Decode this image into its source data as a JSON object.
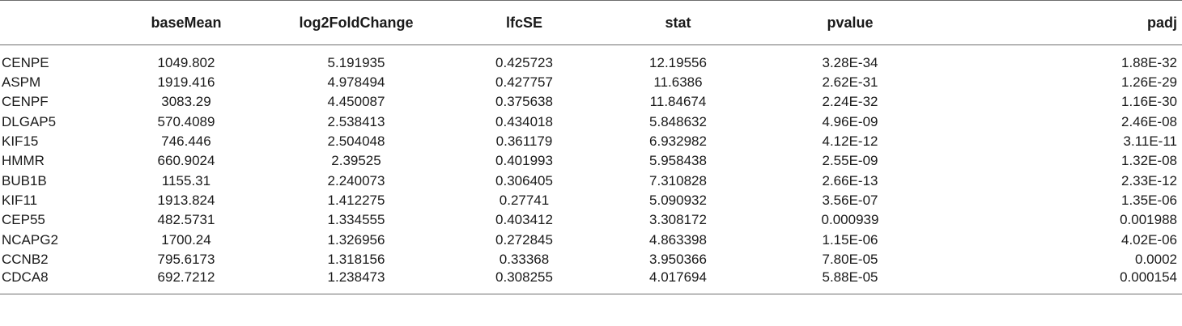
{
  "table": {
    "headers": [
      "",
      "baseMean",
      "log2FoldChange",
      "lfcSE",
      "stat",
      "pvalue",
      "padj"
    ],
    "rows": [
      [
        "CENPE",
        "1049.802",
        "5.191935",
        "0.425723",
        "12.19556",
        "3.28E-34",
        "1.88E-32"
      ],
      [
        "ASPM",
        "1919.416",
        "4.978494",
        "0.427757",
        "11.6386",
        "2.62E-31",
        "1.26E-29"
      ],
      [
        "CENPF",
        "3083.29",
        "4.450087",
        "0.375638",
        "11.84674",
        "2.24E-32",
        "1.16E-30"
      ],
      [
        "DLGAP5",
        "570.4089",
        "2.538413",
        "0.434018",
        "5.848632",
        "4.96E-09",
        "2.46E-08"
      ],
      [
        "KIF15",
        "746.446",
        "2.504048",
        "0.361179",
        "6.932982",
        "4.12E-12",
        "3.11E-11"
      ],
      [
        "HMMR",
        "660.9024",
        "2.39525",
        "0.401993",
        "5.958438",
        "2.55E-09",
        "1.32E-08"
      ],
      [
        "BUB1B",
        "1155.31",
        "2.240073",
        "0.306405",
        "7.310828",
        "2.66E-13",
        "2.33E-12"
      ],
      [
        "KIF11",
        "1913.824",
        "1.412275",
        "0.27741",
        "5.090932",
        "3.56E-07",
        "1.35E-06"
      ],
      [
        "CEP55",
        "482.5731",
        "1.334555",
        "0.403412",
        "3.308172",
        "0.000939",
        "0.001988"
      ],
      [
        "NCAPG2",
        "1700.24",
        "1.326956",
        "0.272845",
        "4.863398",
        "1.15E-06",
        "4.02E-06"
      ],
      [
        "CCNB2",
        "795.6173",
        "1.318156",
        "0.33368",
        "3.950366",
        "7.80E-05",
        "0.0002"
      ],
      [
        "CDCA8",
        "692.7212",
        "1.238473",
        "0.308255",
        "4.017694",
        "5.88E-05",
        "0.000154"
      ]
    ]
  }
}
